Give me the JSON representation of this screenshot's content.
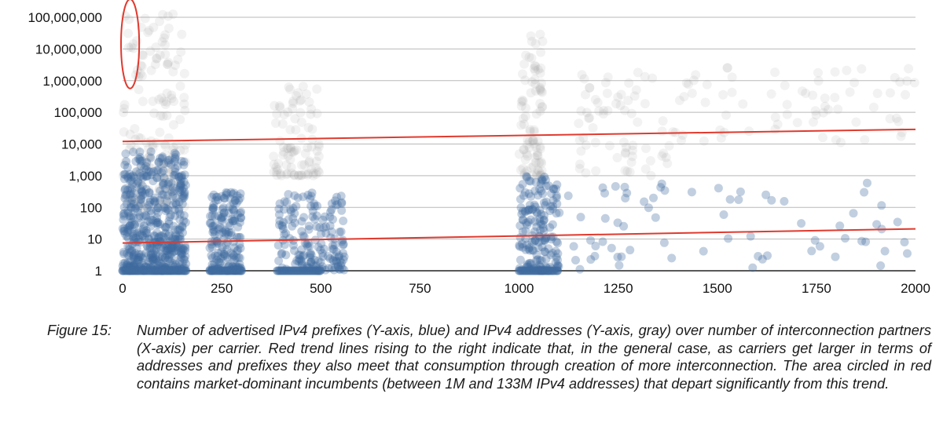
{
  "chart_data": {
    "type": "scatter",
    "xlim": [
      0,
      2000
    ],
    "ylim": [
      1,
      100000000
    ],
    "yscale": "log",
    "x_ticks": [
      "0",
      "250",
      "500",
      "750",
      "1000",
      "1250",
      "1500",
      "1750",
      "2000"
    ],
    "y_ticks": [
      "1",
      "10",
      "100",
      "1,000",
      "10,000",
      "100,000",
      "1,000,000",
      "10,000,000",
      "100,000,000"
    ],
    "grid": "horizontal",
    "colors": {
      "prefixes": "#3f6b9e",
      "addresses": "#9a9a9a",
      "trend": "#e03a2e",
      "highlight": "#e03a2e",
      "grid": "#b9b9b9"
    },
    "series": [
      {
        "color": "#3f6b9e",
        "clusters": [
          {
            "x": [
              0,
              160
            ],
            "y": [
              1,
              6000
            ],
            "density": "very high"
          },
          {
            "x": [
              220,
              300
            ],
            "y": [
              1,
              300
            ],
            "density": "high"
          },
          {
            "x": [
              390,
              560
            ],
            "y": [
              1,
              300
            ],
            "density": "high"
          },
          {
            "x": [
              1000,
              1100
            ],
            "y": [
              1,
              1000
            ],
            "density": "high"
          },
          {
            "x": [
              1100,
              2000
            ],
            "y": [
              1,
              600
            ],
            "density": "sparse"
          }
        ],
        "trend": {
          "x": [
            0,
            2000
          ],
          "y": [
            7.5,
            21
          ]
        }
      },
      {
        "color": "#9a9a9a",
        "clusters": [
          {
            "x": [
              0,
              160
            ],
            "y": [
              100,
              133000000
            ],
            "density": "high"
          },
          {
            "x": [
              380,
              500
            ],
            "y": [
              1000,
              800000
            ],
            "density": "medium"
          },
          {
            "x": [
              1000,
              1060
            ],
            "y": [
              1000,
              30000000
            ],
            "density": "medium"
          },
          {
            "x": [
              1150,
              1400
            ],
            "y": [
              1000,
              3000000
            ],
            "density": "sparse"
          },
          {
            "x": [
              1400,
              2000
            ],
            "y": [
              10000,
              3000000
            ],
            "density": "sparse"
          }
        ],
        "trend": {
          "x": [
            0,
            2000
          ],
          "y": [
            12000,
            29000
          ]
        }
      }
    ],
    "annotations": [
      {
        "shape": "ellipse",
        "x": [
          0,
          30
        ],
        "y": [
          1000000,
          133000000
        ]
      }
    ]
  },
  "caption": {
    "lead": "Figure 15:",
    "body": "Number of advertised IPv4 prefixes (Y-axis, blue) and IPv4 addresses (Y-axis, gray) over number of interconnection partners (X-axis) per carrier. Red trend lines rising to the right indicate that, in the general case, as carriers get larger in terms of addresses and prefixes they also meet that consumption through creation of more interconnection. The area circled in red contains market-dominant incumbents (between 1M and 133M IPv4 addresses) that depart significantly from this trend."
  }
}
